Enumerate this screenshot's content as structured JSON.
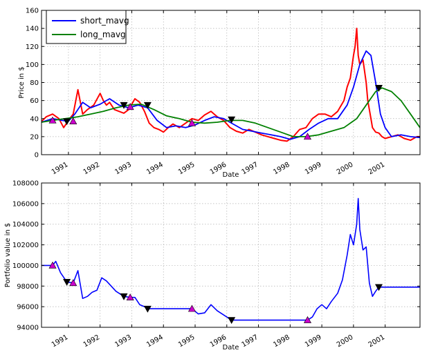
{
  "chart_data": [
    {
      "type": "line",
      "xlabel": "Date",
      "ylabel": "Price in $",
      "xlim": [
        1990.15,
        2002.1
      ],
      "ylim": [
        0,
        160
      ],
      "yticks": [
        0,
        20,
        40,
        60,
        80,
        100,
        120,
        140,
        160
      ],
      "xticks": [
        {
          "label": "1991",
          "x": 1991.0
        },
        {
          "label": "1992",
          "x": 1992.0
        },
        {
          "label": "1993",
          "x": 1993.0
        },
        {
          "label": "1994",
          "x": 1994.0
        },
        {
          "label": "1995",
          "x": 1995.0
        },
        {
          "label": "1996",
          "x": 1996.0
        },
        {
          "label": "1997",
          "x": 1997.0
        },
        {
          "label": "1998",
          "x": 1998.0
        },
        {
          "label": "1999",
          "x": 1999.0
        },
        {
          "label": "2000",
          "x": 2000.0
        },
        {
          "label": "2001",
          "x": 2001.0
        }
      ],
      "grid": true,
      "legend": "top-left",
      "series": [
        {
          "key": "price",
          "color": "#ff0000",
          "x": [
            1990.15,
            1990.3,
            1990.5,
            1990.7,
            1990.85,
            1991.0,
            1991.15,
            1991.3,
            1991.45,
            1991.6,
            1991.8,
            1992.0,
            1992.1,
            1992.2,
            1992.3,
            1992.45,
            1992.6,
            1992.75,
            1992.9,
            1993.1,
            1993.25,
            1993.4,
            1993.55,
            1993.7,
            1993.85,
            1994.0,
            1994.15,
            1994.3,
            1994.5,
            1994.7,
            1994.9,
            1995.1,
            1995.3,
            1995.5,
            1995.7,
            1995.9,
            1996.1,
            1996.3,
            1996.5,
            1996.7,
            1996.9,
            1997.1,
            1997.3,
            1997.5,
            1997.7,
            1997.9,
            1998.1,
            1998.3,
            1998.5,
            1998.7,
            1998.9,
            1999.1,
            1999.3,
            1999.5,
            1999.7,
            1999.8,
            1999.9,
            2000.0,
            2000.05,
            2000.1,
            2000.15,
            2000.2,
            2000.3,
            2000.4,
            2000.45,
            2000.5,
            2000.55,
            2000.6,
            2000.7,
            2000.8,
            2000.9,
            2001.0,
            2001.2,
            2001.4,
            2001.6,
            2001.8,
            2002.0,
            2002.1
          ],
          "values": [
            37,
            42,
            45,
            40,
            30,
            38,
            45,
            72,
            45,
            50,
            55,
            68,
            60,
            55,
            58,
            50,
            48,
            46,
            50,
            62,
            58,
            48,
            35,
            30,
            28,
            25,
            30,
            34,
            30,
            35,
            40,
            38,
            44,
            48,
            42,
            38,
            30,
            26,
            24,
            28,
            25,
            22,
            20,
            18,
            16,
            15,
            20,
            28,
            30,
            40,
            45,
            45,
            42,
            48,
            60,
            75,
            85,
            110,
            120,
            140,
            110,
            100,
            105,
            80,
            60,
            50,
            40,
            30,
            25,
            24,
            20,
            18,
            20,
            22,
            18,
            16,
            20,
            20
          ]
        },
        {
          "key": "short",
          "name": "short_mavg",
          "color": "#0000ff",
          "x": [
            1990.15,
            1990.5,
            1990.8,
            1991.0,
            1991.2,
            1991.45,
            1991.7,
            1992.0,
            1992.3,
            1992.6,
            1992.9,
            1993.2,
            1993.5,
            1993.8,
            1994.1,
            1994.4,
            1994.7,
            1995.0,
            1995.3,
            1995.6,
            1995.9,
            1996.2,
            1996.5,
            1996.8,
            1997.1,
            1997.4,
            1997.7,
            1998.0,
            1998.3,
            1998.6,
            1998.9,
            1999.2,
            1999.5,
            1999.8,
            2000.0,
            2000.2,
            2000.4,
            2000.55,
            2000.7,
            2000.85,
            2001.0,
            2001.2,
            2001.5,
            2001.8,
            2002.1
          ],
          "values": [
            36,
            40,
            38,
            37,
            45,
            58,
            52,
            56,
            62,
            55,
            52,
            55,
            52,
            38,
            30,
            32,
            30,
            33,
            38,
            42,
            40,
            34,
            28,
            26,
            24,
            22,
            20,
            17,
            20,
            28,
            35,
            40,
            40,
            55,
            75,
            100,
            115,
            110,
            80,
            45,
            30,
            20,
            22,
            20,
            19
          ]
        },
        {
          "key": "long",
          "name": "long_mavg",
          "color": "#008000",
          "x": [
            1990.15,
            1990.5,
            1990.9,
            1991.3,
            1991.7,
            1992.1,
            1992.5,
            1992.9,
            1993.3,
            1993.7,
            1994.1,
            1994.5,
            1994.9,
            1995.3,
            1995.7,
            1996.1,
            1996.5,
            1996.9,
            1997.3,
            1997.7,
            1998.1,
            1998.5,
            1998.9,
            1999.3,
            1999.7,
            2000.1,
            2000.4,
            2000.7,
            2000.9,
            2001.2,
            2001.5,
            2001.8,
            2002.1
          ],
          "values": [
            36,
            38,
            40,
            42,
            45,
            48,
            52,
            55,
            56,
            50,
            43,
            40,
            36,
            35,
            36,
            38,
            38,
            35,
            30,
            25,
            20,
            20,
            22,
            26,
            30,
            40,
            55,
            70,
            74,
            70,
            60,
            45,
            30
          ]
        }
      ],
      "markers": {
        "buy": [
          [
            1990.5,
            38
          ],
          [
            1991.15,
            37
          ],
          [
            1992.95,
            53
          ],
          [
            1994.9,
            35
          ],
          [
            1998.55,
            20
          ]
        ],
        "sell": [
          [
            1990.95,
            37
          ],
          [
            1992.75,
            55
          ],
          [
            1993.5,
            55
          ],
          [
            1996.15,
            39
          ],
          [
            2000.8,
            74
          ]
        ]
      }
    },
    {
      "type": "line",
      "xlabel": "Date",
      "ylabel": "Portfolio value in $",
      "xlim": [
        1990.15,
        2002.1
      ],
      "ylim": [
        94000,
        108000
      ],
      "yticks": [
        94000,
        96000,
        98000,
        100000,
        102000,
        104000,
        106000,
        108000
      ],
      "xticks": [
        {
          "label": "1991",
          "x": 1991.0
        },
        {
          "label": "1992",
          "x": 1992.0
        },
        {
          "label": "1993",
          "x": 1993.0
        },
        {
          "label": "1994",
          "x": 1994.0
        },
        {
          "label": "1995",
          "x": 1995.0
        },
        {
          "label": "1996",
          "x": 1996.0
        },
        {
          "label": "1997",
          "x": 1997.0
        },
        {
          "label": "1998",
          "x": 1998.0
        },
        {
          "label": "1999",
          "x": 1999.0
        },
        {
          "label": "2000",
          "x": 2000.0
        },
        {
          "label": "2001",
          "x": 2001.0
        }
      ],
      "grid": true,
      "series": [
        {
          "key": "portfolio",
          "color": "#0000ff",
          "x": [
            1990.15,
            1990.5,
            1990.6,
            1990.75,
            1990.95,
            1991.15,
            1991.3,
            1991.45,
            1991.6,
            1991.75,
            1991.9,
            1992.05,
            1992.2,
            1992.35,
            1992.5,
            1992.75,
            1992.95,
            1993.1,
            1993.25,
            1993.4,
            1993.5,
            1994.9,
            1995.1,
            1995.3,
            1995.5,
            1995.7,
            1995.9,
            1996.15,
            1998.55,
            1998.7,
            1998.85,
            1999.0,
            1999.15,
            1999.3,
            1999.5,
            1999.65,
            1999.8,
            1999.9,
            2000.0,
            2000.1,
            2000.15,
            2000.2,
            2000.3,
            2000.4,
            2000.5,
            2000.6,
            2000.7,
            2000.8,
            2002.1
          ],
          "values": [
            100000,
            100000,
            100400,
            99300,
            98400,
            98300,
            99500,
            96800,
            97000,
            97400,
            97600,
            98800,
            98500,
            98000,
            97500,
            97000,
            96900,
            96900,
            96200,
            96000,
            95800,
            95800,
            95300,
            95400,
            96200,
            95600,
            95200,
            94700,
            94700,
            95000,
            95800,
            96200,
            95800,
            96500,
            97300,
            98600,
            101000,
            103000,
            102000,
            104000,
            106500,
            103500,
            101500,
            101800,
            98300,
            97000,
            97500,
            97900,
            97900
          ]
        }
      ],
      "markers": {
        "buy": [
          [
            1990.5,
            100000
          ],
          [
            1991.15,
            98300
          ],
          [
            1992.95,
            96900
          ],
          [
            1994.9,
            95800
          ],
          [
            1998.55,
            94700
          ]
        ],
        "sell": [
          [
            1990.95,
            98400
          ],
          [
            1992.75,
            97000
          ],
          [
            1993.5,
            95800
          ],
          [
            1996.15,
            94700
          ],
          [
            2000.8,
            97900
          ]
        ]
      }
    }
  ]
}
